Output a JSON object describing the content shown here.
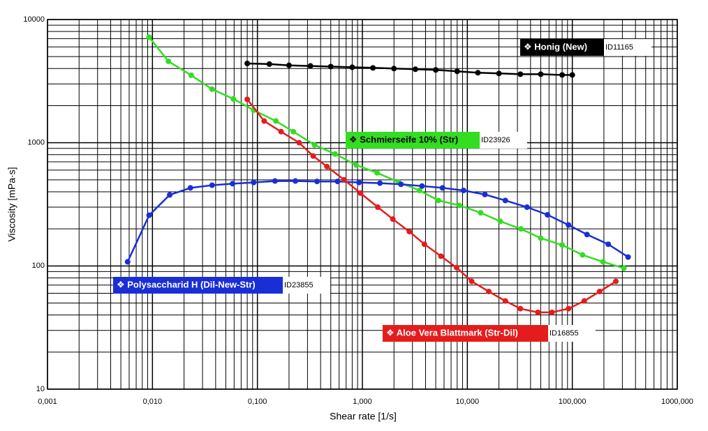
{
  "chart_data": {
    "type": "line",
    "x_scale": "log",
    "y_scale": "log",
    "grid": true,
    "xlabel": "Shear rate  [1/s]",
    "ylabel": "Viscosity  [mPa·s]",
    "xlim": [
      0.001,
      1000
    ],
    "ylim": [
      10,
      10000
    ],
    "xticks": [
      {
        "value": 0.001,
        "label": "0,001"
      },
      {
        "value": 0.01,
        "label": "0,010"
      },
      {
        "value": 0.1,
        "label": "0,100"
      },
      {
        "value": 1,
        "label": "1,000"
      },
      {
        "value": 10,
        "label": "10,000"
      },
      {
        "value": 100,
        "label": "100,000"
      },
      {
        "value": 1000,
        "label": "1000,000"
      }
    ],
    "yticks": [
      10,
      100,
      1000,
      10000
    ],
    "series": [
      {
        "name": "❖ Honig (New)",
        "id": "ID11165",
        "color": "#000000",
        "label_color": "#ffffff",
        "x": [
          0.08,
          0.13,
          0.2,
          0.32,
          0.5,
          0.8,
          1.26,
          2,
          3.2,
          5,
          8,
          12.6,
          20,
          32,
          50,
          80,
          100
        ],
        "values": [
          4400,
          4350,
          4250,
          4200,
          4150,
          4100,
          4050,
          4000,
          3950,
          3900,
          3800,
          3700,
          3650,
          3600,
          3600,
          3550,
          3550
        ]
      },
      {
        "name": "❖ Schmierseife 10% (Str)",
        "id": "ID23926",
        "color": "#33dd22",
        "label_color": "#000000",
        "x": [
          0.0093,
          0.0142,
          0.0234,
          0.037,
          0.059,
          0.092,
          0.15,
          0.22,
          0.35,
          0.55,
          0.87,
          1.38,
          2.2,
          3.5,
          5.3,
          8.4,
          13.4,
          20.6,
          32.4,
          50,
          80,
          125,
          196,
          310
        ],
        "values": [
          7200,
          4580,
          3530,
          2720,
          2270,
          1840,
          1500,
          1230,
          960,
          810,
          660,
          570,
          480,
          410,
          340,
          310,
          270,
          230,
          200,
          168,
          148,
          123,
          108,
          96
        ]
      },
      {
        "name": "❖ Polysaccharid H (Dil-New-Str)",
        "id": "ID23855",
        "color": "#1a2ed6",
        "label_color": "#ffffff",
        "x": [
          0.0058,
          0.0093,
          0.0146,
          0.023,
          0.037,
          0.058,
          0.092,
          0.147,
          0.23,
          0.37,
          0.58,
          0.93,
          1.47,
          2.33,
          3.7,
          5.8,
          9.2,
          14.7,
          23,
          37,
          58,
          92,
          138,
          220,
          340
        ],
        "values": [
          108,
          258,
          377,
          430,
          452,
          465,
          476,
          489,
          489,
          485,
          485,
          476,
          470,
          460,
          445,
          430,
          410,
          380,
          340,
          300,
          260,
          215,
          180,
          150,
          118
        ]
      },
      {
        "name": "❖ Aloe Vera Blattmark (Str-Dil)",
        "id": "ID16855",
        "color": "#e51c1c",
        "label_color": "#ffffff",
        "x": [
          0.08,
          0.116,
          0.168,
          0.25,
          0.34,
          0.46,
          0.67,
          0.96,
          1.4,
          1.95,
          2.8,
          3.9,
          5.6,
          7.9,
          11,
          16,
          23,
          32,
          47,
          64,
          92,
          130,
          182,
          260
        ],
        "values": [
          2250,
          1500,
          1230,
          1000,
          780,
          640,
          500,
          390,
          300,
          240,
          190,
          150,
          120,
          97,
          75,
          62,
          52,
          45,
          42,
          42,
          45,
          52,
          62,
          75
        ]
      }
    ]
  }
}
